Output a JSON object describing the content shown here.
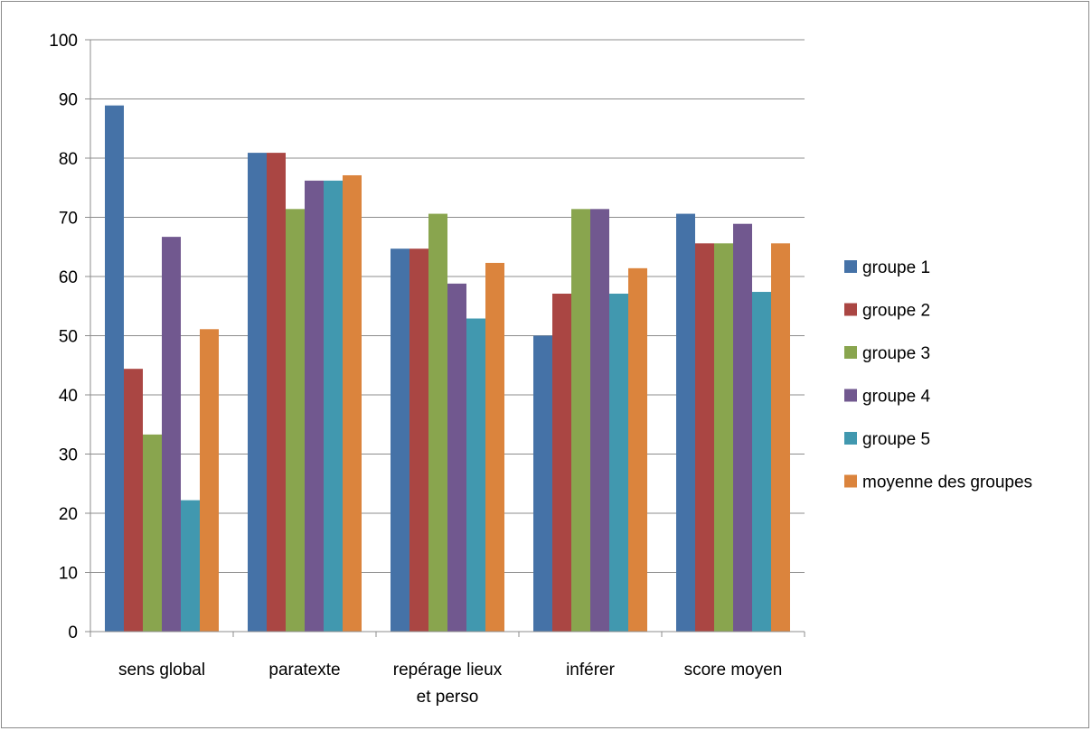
{
  "chart_data": {
    "type": "bar",
    "title": "",
    "xlabel": "",
    "ylabel": "",
    "ylim": [
      0,
      100
    ],
    "yticks": [
      0,
      10,
      20,
      30,
      40,
      50,
      60,
      70,
      80,
      90,
      100
    ],
    "grid": "horizontal",
    "legend": "right",
    "categories": [
      [
        "sens global"
      ],
      [
        "paratexte"
      ],
      [
        "repérage lieux",
        "et perso"
      ],
      [
        "inférer"
      ],
      [
        "score moyen"
      ]
    ],
    "series": [
      {
        "name": "groupe 1",
        "color": "#4572A7",
        "values": [
          88.9,
          80.9,
          64.7,
          50.0,
          70.6
        ]
      },
      {
        "name": "groupe 2",
        "color": "#AA4643",
        "values": [
          44.4,
          80.9,
          64.7,
          57.1,
          65.6
        ]
      },
      {
        "name": "groupe 3",
        "color": "#89A54E",
        "values": [
          33.3,
          71.4,
          70.6,
          71.4,
          65.6
        ]
      },
      {
        "name": "groupe 4",
        "color": "#71588F",
        "values": [
          66.7,
          76.2,
          58.8,
          71.4,
          68.9
        ]
      },
      {
        "name": "groupe 5",
        "color": "#4198AF",
        "values": [
          22.2,
          76.2,
          52.9,
          57.1,
          57.4
        ]
      },
      {
        "name": "moyenne des groupes",
        "color": "#DB843D",
        "values": [
          51.1,
          77.1,
          62.3,
          61.4,
          65.6
        ]
      }
    ]
  }
}
